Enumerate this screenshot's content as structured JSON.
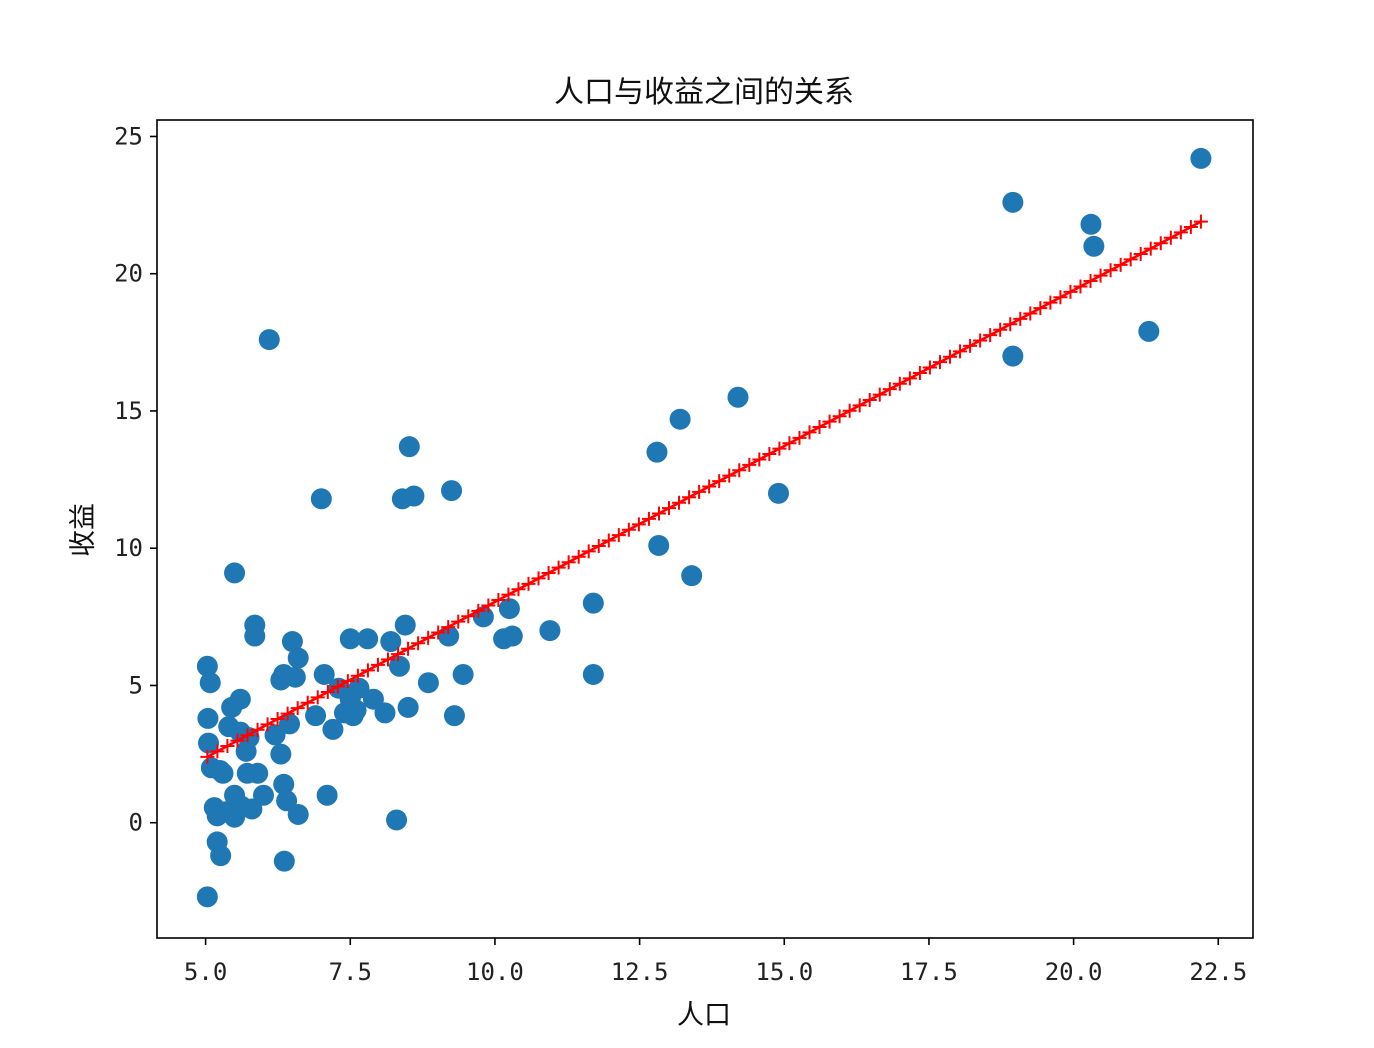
{
  "chart_data": {
    "type": "scatter",
    "title": "人口与收益之间的关系",
    "xlabel": "人口",
    "ylabel": "收益",
    "xlim": [
      4.16,
      23.1
    ],
    "ylim": [
      -4.2,
      25.6
    ],
    "xticks": [
      "5.0",
      "7.5",
      "10.0",
      "12.5",
      "15.0",
      "17.5",
      "20.0",
      "22.5"
    ],
    "yticks": [
      "0",
      "5",
      "10",
      "15",
      "20",
      "25"
    ],
    "grid": false,
    "legend": "none",
    "series": [
      {
        "type": "scatter",
        "color": "#1f77b4",
        "marker": "circle",
        "points": [
          [
            5.03,
            5.7
          ],
          [
            5.08,
            5.1
          ],
          [
            5.04,
            3.8
          ],
          [
            5.05,
            2.9
          ],
          [
            5.1,
            2.0
          ],
          [
            5.25,
            1.9
          ],
          [
            5.15,
            0.55
          ],
          [
            5.2,
            0.25
          ],
          [
            5.2,
            -0.7
          ],
          [
            5.26,
            -1.2
          ],
          [
            5.03,
            -2.7
          ],
          [
            5.3,
            1.8
          ],
          [
            5.35,
            0.4
          ],
          [
            5.4,
            3.5
          ],
          [
            5.45,
            4.2
          ],
          [
            5.5,
            9.1
          ],
          [
            5.5,
            1.0
          ],
          [
            5.5,
            0.2
          ],
          [
            5.6,
            4.5
          ],
          [
            5.6,
            3.3
          ],
          [
            5.62,
            0.6
          ],
          [
            5.7,
            2.6
          ],
          [
            5.72,
            1.8
          ],
          [
            5.75,
            3.1
          ],
          [
            5.8,
            0.5
          ],
          [
            5.85,
            7.2
          ],
          [
            5.85,
            6.8
          ],
          [
            5.9,
            1.8
          ],
          [
            6.0,
            1.0
          ],
          [
            6.1,
            17.6
          ],
          [
            6.2,
            3.2
          ],
          [
            6.3,
            2.5
          ],
          [
            6.3,
            5.2
          ],
          [
            6.35,
            5.4
          ],
          [
            6.35,
            1.4
          ],
          [
            6.4,
            0.8
          ],
          [
            6.36,
            -1.4
          ],
          [
            6.45,
            3.6
          ],
          [
            6.5,
            6.6
          ],
          [
            6.55,
            5.3
          ],
          [
            6.6,
            6.0
          ],
          [
            6.6,
            0.3
          ],
          [
            6.9,
            3.9
          ],
          [
            7.0,
            11.8
          ],
          [
            7.05,
            5.4
          ],
          [
            7.1,
            1.0
          ],
          [
            7.2,
            3.4
          ],
          [
            7.3,
            4.9
          ],
          [
            7.4,
            4.0
          ],
          [
            7.5,
            6.7
          ],
          [
            7.5,
            4.5
          ],
          [
            7.55,
            3.9
          ],
          [
            7.6,
            4.1
          ],
          [
            7.65,
            4.9
          ],
          [
            7.8,
            6.7
          ],
          [
            7.9,
            4.5
          ],
          [
            8.1,
            4.0
          ],
          [
            8.2,
            6.6
          ],
          [
            8.3,
            0.1
          ],
          [
            8.35,
            5.7
          ],
          [
            8.4,
            11.8
          ],
          [
            8.45,
            7.2
          ],
          [
            8.5,
            4.2
          ],
          [
            8.52,
            13.7
          ],
          [
            8.6,
            11.9
          ],
          [
            8.85,
            5.1
          ],
          [
            9.2,
            6.8
          ],
          [
            9.25,
            12.1
          ],
          [
            9.3,
            3.9
          ],
          [
            9.45,
            5.4
          ],
          [
            9.8,
            7.5
          ],
          [
            10.15,
            6.7
          ],
          [
            10.25,
            7.8
          ],
          [
            10.3,
            6.8
          ],
          [
            10.95,
            7.0
          ],
          [
            11.7,
            8.0
          ],
          [
            11.7,
            5.4
          ],
          [
            12.8,
            13.5
          ],
          [
            12.83,
            10.1
          ],
          [
            13.2,
            14.7
          ],
          [
            13.4,
            9.0
          ],
          [
            14.2,
            15.5
          ],
          [
            14.9,
            12.0
          ],
          [
            18.95,
            22.6
          ],
          [
            18.95,
            17.0
          ],
          [
            20.3,
            21.8
          ],
          [
            20.35,
            21.0
          ],
          [
            21.3,
            17.9
          ],
          [
            22.2,
            24.2
          ]
        ]
      },
      {
        "type": "line",
        "color": "#ff0000",
        "marker": "plus",
        "x_start": 5.03,
        "x_end": 22.2,
        "y_start": 2.4,
        "y_end": 21.9,
        "num_points": 100
      }
    ]
  }
}
